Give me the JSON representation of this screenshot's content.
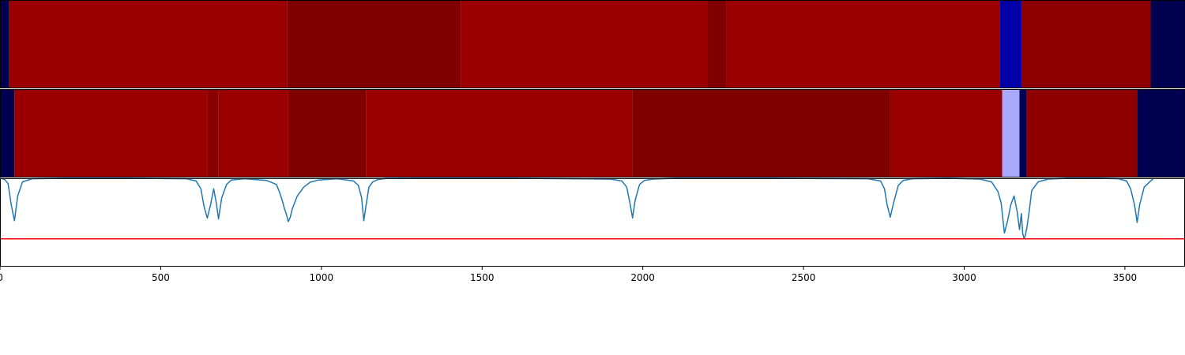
{
  "chart_data": [
    {
      "type": "heatmap",
      "title": "",
      "xlim": [
        0,
        3687
      ],
      "segments": [
        {
          "start": 0,
          "end": 28,
          "color": "#000050"
        },
        {
          "start": 28,
          "end": 893,
          "color": "#9b0000"
        },
        {
          "start": 893,
          "end": 1435,
          "color": "#800000"
        },
        {
          "start": 1435,
          "end": 2200,
          "color": "#9b0000"
        },
        {
          "start": 2200,
          "end": 2260,
          "color": "#800000"
        },
        {
          "start": 2260,
          "end": 3110,
          "color": "#9b0000"
        },
        {
          "start": 3110,
          "end": 3178,
          "color": "#0000a8"
        },
        {
          "start": 3178,
          "end": 3580,
          "color": "#8e0000"
        },
        {
          "start": 3580,
          "end": 3687,
          "color": "#000050"
        }
      ]
    },
    {
      "type": "heatmap",
      "title": "",
      "xlim": [
        0,
        3687
      ],
      "segments": [
        {
          "start": 0,
          "end": 45,
          "color": "#000050"
        },
        {
          "start": 45,
          "end": 645,
          "color": "#9b0000"
        },
        {
          "start": 645,
          "end": 680,
          "color": "#8a0000"
        },
        {
          "start": 680,
          "end": 897,
          "color": "#9b0000"
        },
        {
          "start": 897,
          "end": 1140,
          "color": "#800000"
        },
        {
          "start": 1140,
          "end": 1968,
          "color": "#9b0000"
        },
        {
          "start": 1968,
          "end": 2770,
          "color": "#800000"
        },
        {
          "start": 2770,
          "end": 3118,
          "color": "#9b0000"
        },
        {
          "start": 3118,
          "end": 3172,
          "color": "#a8a8ff"
        },
        {
          "start": 3172,
          "end": 3193,
          "color": "#000050"
        },
        {
          "start": 3193,
          "end": 3538,
          "color": "#8e0000"
        },
        {
          "start": 3538,
          "end": 3687,
          "color": "#000050"
        }
      ]
    },
    {
      "type": "line",
      "title": "",
      "xlabel": "",
      "ylabel": "",
      "xlim": [
        0,
        3687
      ],
      "ylim": [
        0,
        1
      ],
      "xticks": [
        0,
        500,
        1000,
        1500,
        2000,
        2500,
        3000,
        3500
      ],
      "series": [
        {
          "color": "#1f77b4",
          "x": [
            0,
            15,
            25,
            35,
            45,
            55,
            70,
            100,
            200,
            400,
            580,
            610,
            625,
            635,
            645,
            655,
            665,
            673,
            680,
            690,
            705,
            720,
            760,
            830,
            860,
            870,
            878,
            885,
            892,
            897,
            903,
            910,
            925,
            945,
            965,
            990,
            1050,
            1100,
            1115,
            1125,
            1132,
            1140,
            1148,
            1160,
            1175,
            1200,
            1300,
            1600,
            1900,
            1935,
            1950,
            1960,
            1968,
            1976,
            1990,
            2005,
            2030,
            2100,
            2400,
            2700,
            2740,
            2752,
            2760,
            2770,
            2780,
            2795,
            2810,
            2840,
            2950,
            3050,
            3085,
            3105,
            3115,
            3125,
            3135,
            3145,
            3155,
            3165,
            3172,
            3178,
            3182,
            3186,
            3190,
            3195,
            3202,
            3210,
            3230,
            3260,
            3320,
            3420,
            3480,
            3505,
            3518,
            3530,
            3538,
            3546,
            3560,
            3580,
            3590
          ],
          "y": [
            1.0,
            0.985,
            0.94,
            0.7,
            0.52,
            0.8,
            0.96,
            0.995,
            1.0,
            1.0,
            0.995,
            0.97,
            0.88,
            0.68,
            0.55,
            0.7,
            0.88,
            0.72,
            0.54,
            0.78,
            0.93,
            0.98,
            0.995,
            0.975,
            0.93,
            0.84,
            0.75,
            0.66,
            0.58,
            0.51,
            0.56,
            0.66,
            0.8,
            0.9,
            0.955,
            0.98,
            0.995,
            0.97,
            0.92,
            0.78,
            0.52,
            0.72,
            0.9,
            0.96,
            0.985,
            0.998,
            1.0,
            1.0,
            0.99,
            0.97,
            0.9,
            0.72,
            0.55,
            0.75,
            0.93,
            0.975,
            0.99,
            1.0,
            1.0,
            0.995,
            0.97,
            0.88,
            0.7,
            0.56,
            0.72,
            0.92,
            0.975,
            0.995,
            1.0,
            0.99,
            0.96,
            0.85,
            0.72,
            0.38,
            0.52,
            0.7,
            0.8,
            0.62,
            0.42,
            0.6,
            0.38,
            0.32,
            0.35,
            0.44,
            0.62,
            0.86,
            0.96,
            0.99,
            1.0,
            1.0,
            0.995,
            0.97,
            0.88,
            0.7,
            0.5,
            0.7,
            0.9,
            0.97,
            1.0
          ]
        },
        {
          "color": "#ff0000",
          "type": "hline",
          "y": 0.315
        }
      ]
    }
  ]
}
